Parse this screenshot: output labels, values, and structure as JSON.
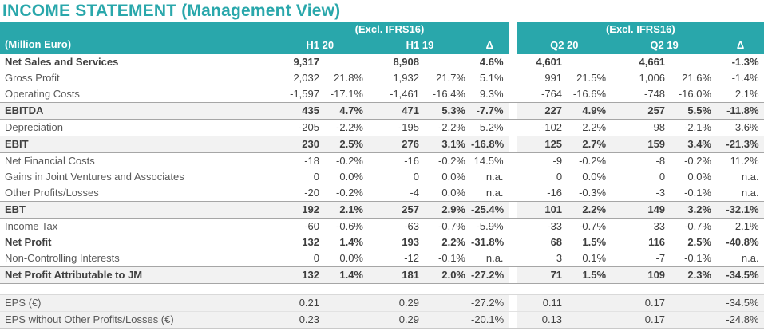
{
  "title": "INCOME STATEMENT (Management View)",
  "colors": {
    "accent_teal": "#29a7ab",
    "highlight_row_bg": "#f2f2f2",
    "highlight_row_border": "#a6a6a6",
    "grid_border": "#c4c4c4",
    "body_text": "#404040",
    "label_text": "#595959",
    "header_text": "#ffffff"
  },
  "table": {
    "unit_label": "(Million Euro)",
    "sections": [
      {
        "group_label": "(Excl. IFRS16)",
        "periods": [
          "H1 20",
          "H1 19"
        ],
        "delta_label": "Δ"
      },
      {
        "group_label": "(Excl. IFRS16)",
        "periods": [
          "Q2 20",
          "Q2 19"
        ],
        "delta_label": "Δ"
      }
    ],
    "rows": [
      {
        "label": "Net Sales and Services",
        "style": "bold",
        "cells": [
          "9,317",
          "",
          "8,908",
          "",
          "4.6%",
          "4,601",
          "",
          "4,661",
          "",
          "-1.3%"
        ]
      },
      {
        "label": "Gross Profit",
        "style": "normal",
        "cells": [
          "2,032",
          "21.8%",
          "1,932",
          "21.7%",
          "5.1%",
          "991",
          "21.5%",
          "1,006",
          "21.6%",
          "-1.4%"
        ]
      },
      {
        "label": "Operating Costs",
        "style": "normal",
        "cells": [
          "-1,597",
          "-17.1%",
          "-1,461",
          "-16.4%",
          "9.3%",
          "-764",
          "-16.6%",
          "-748",
          "-16.0%",
          "2.1%"
        ]
      },
      {
        "label": "EBITDA",
        "style": "highlight",
        "cells": [
          "435",
          "4.7%",
          "471",
          "5.3%",
          "-7.7%",
          "227",
          "4.9%",
          "257",
          "5.5%",
          "-11.8%"
        ]
      },
      {
        "label": "Depreciation",
        "style": "normal",
        "cells": [
          "-205",
          "-2.2%",
          "-195",
          "-2.2%",
          "5.2%",
          "-102",
          "-2.2%",
          "-98",
          "-2.1%",
          "3.6%"
        ]
      },
      {
        "label": "EBIT",
        "style": "highlight",
        "cells": [
          "230",
          "2.5%",
          "276",
          "3.1%",
          "-16.8%",
          "125",
          "2.7%",
          "159",
          "3.4%",
          "-21.3%"
        ]
      },
      {
        "label": "Net Financial Costs",
        "style": "normal",
        "cells": [
          "-18",
          "-0.2%",
          "-16",
          "-0.2%",
          "14.5%",
          "-9",
          "-0.2%",
          "-8",
          "-0.2%",
          "11.2%"
        ]
      },
      {
        "label": "Gains in Joint Ventures and Associates",
        "style": "normal",
        "cells": [
          "0",
          "0.0%",
          "0",
          "0.0%",
          "n.a.",
          "0",
          "0.0%",
          "0",
          "0.0%",
          "n.a."
        ]
      },
      {
        "label": "Other Profits/Losses",
        "style": "normal",
        "cells": [
          "-20",
          "-0.2%",
          "-4",
          "0.0%",
          "n.a.",
          "-16",
          "-0.3%",
          "-3",
          "-0.1%",
          "n.a."
        ]
      },
      {
        "label": "EBT",
        "style": "highlight",
        "cells": [
          "192",
          "2.1%",
          "257",
          "2.9%",
          "-25.4%",
          "101",
          "2.2%",
          "149",
          "3.2%",
          "-32.1%"
        ]
      },
      {
        "label": "Income Tax",
        "style": "normal",
        "cells": [
          "-60",
          "-0.6%",
          "-63",
          "-0.7%",
          "-5.9%",
          "-33",
          "-0.7%",
          "-33",
          "-0.7%",
          "-2.1%"
        ]
      },
      {
        "label": "Net Profit",
        "style": "bold",
        "cells": [
          "132",
          "1.4%",
          "193",
          "2.2%",
          "-31.8%",
          "68",
          "1.5%",
          "116",
          "2.5%",
          "-40.8%"
        ]
      },
      {
        "label": "Non-Controlling Interests",
        "style": "normal",
        "cells": [
          "0",
          "0.0%",
          "-12",
          "-0.1%",
          "n.a.",
          "3",
          "0.1%",
          "-7",
          "-0.1%",
          "n.a."
        ]
      },
      {
        "label": "Net Profit Attributable to JM",
        "style": "highlight",
        "cells": [
          "132",
          "1.4%",
          "181",
          "2.0%",
          "-27.2%",
          "71",
          "1.5%",
          "109",
          "2.3%",
          "-34.5%"
        ]
      },
      {
        "label": "",
        "style": "spacer",
        "cells": []
      },
      {
        "label": "EPS (€)",
        "style": "eps first",
        "cells": [
          "0.21",
          "",
          "0.29",
          "",
          "-27.2%",
          "0.11",
          "",
          "0.17",
          "",
          "-34.5%"
        ]
      },
      {
        "label": "EPS without Other Profits/Losses (€)",
        "style": "eps second",
        "cells": [
          "0.23",
          "",
          "0.29",
          "",
          "-20.1%",
          "0.13",
          "",
          "0.17",
          "",
          "-24.8%"
        ]
      }
    ]
  }
}
